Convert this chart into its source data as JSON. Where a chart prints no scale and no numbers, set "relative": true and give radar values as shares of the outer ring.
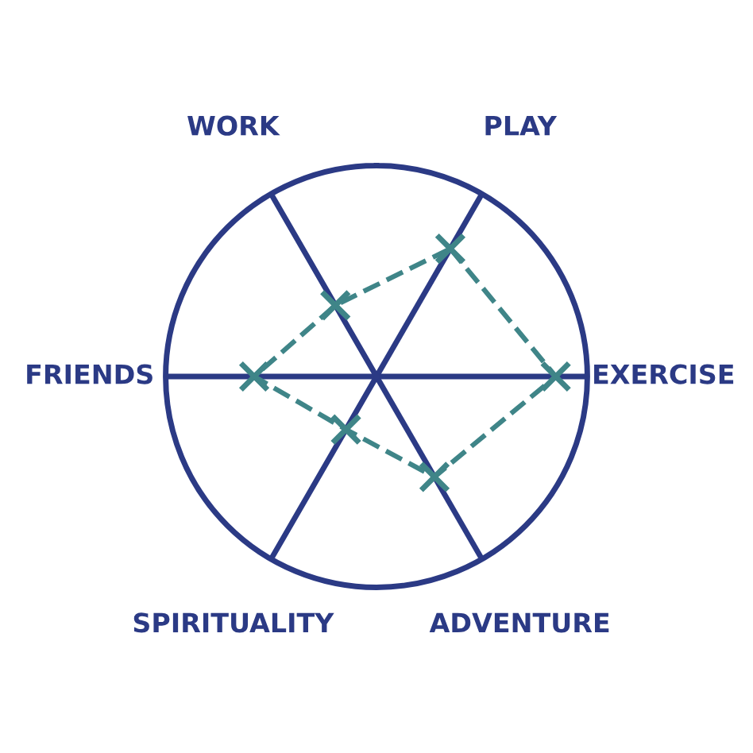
{
  "chart_data": {
    "type": "radar",
    "relative": true,
    "categories": [
      "PLAY",
      "EXERCISE",
      "ADVENTURE",
      "SPIRITUALITY",
      "FRIENDS",
      "WORK"
    ],
    "series": [
      {
        "color": "#3f8588",
        "values": [
          0.7,
          0.85,
          0.55,
          0.29,
          0.58,
          0.39
        ]
      }
    ],
    "marker": "cross",
    "line_style": "dashed",
    "grid": true
  }
}
